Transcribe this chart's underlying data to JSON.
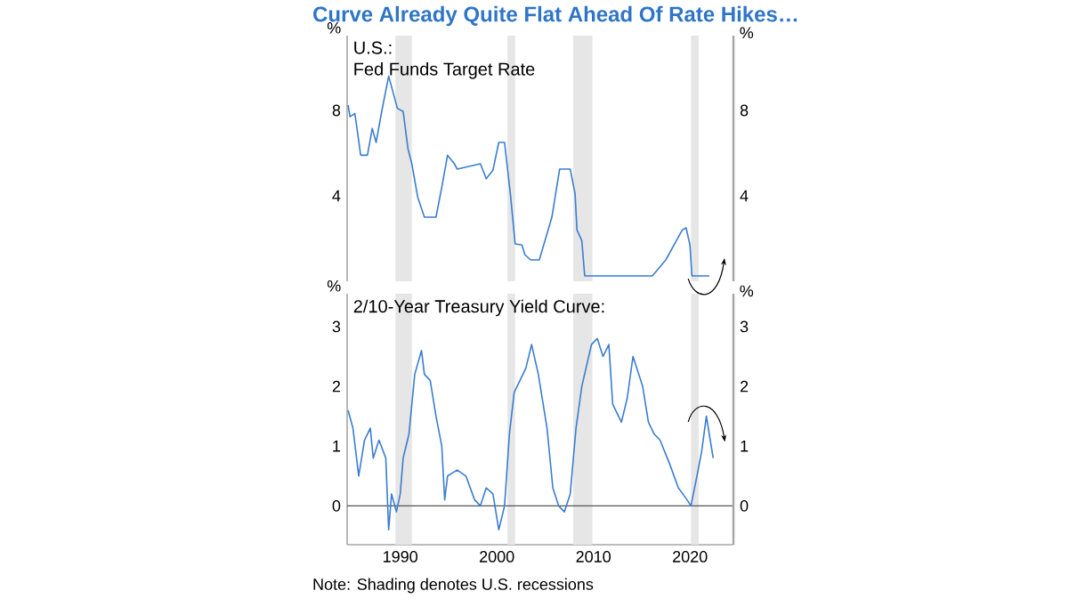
{
  "chart_data": [
    {
      "type": "line",
      "title": "Curve Already Quite Flat Ahead Of Rate Hikes…",
      "subtitle": "Fed Funds Target Rate",
      "annotations": [
        "U.S.:"
      ],
      "ylabel": "%",
      "y2label": "%",
      "tick_labels": "y",
      "color": "#3a7dd0",
      "xlim": [
        1984.5,
        2024.5
      ],
      "xticks": [
        1990,
        2000,
        2010,
        2020
      ],
      "ylim": [
        0,
        11.5
      ],
      "yticks": [
        4,
        8
      ],
      "y2lim": [
        0,
        11.5
      ],
      "y2ticks": [
        4,
        8
      ],
      "bands": [
        {
          "axis": "x",
          "from": 1989.5,
          "to": 1991.2,
          "color": "#e6e6e6"
        },
        {
          "axis": "x",
          "from": 2001.1,
          "to": 2001.9,
          "color": "#e6e6e6"
        },
        {
          "axis": "x",
          "from": 2007.9,
          "to": 2009.9,
          "color": "#e6e6e6"
        },
        {
          "axis": "x",
          "from": 2020.1,
          "to": 2020.9,
          "color": "#e6e6e6"
        }
      ],
      "x": [
        1984.6,
        1984.8,
        1985.3,
        1985.6,
        1985.9,
        1986.6,
        1987.1,
        1987.5,
        1988.1,
        1988.8,
        1989.1,
        1989.7,
        1990.3,
        1990.8,
        1991.2,
        1991.8,
        1992.5,
        1993.7,
        1994.3,
        1994.9,
        1995.6,
        1995.9,
        1998.3,
        1998.9,
        1999.6,
        2000.2,
        2000.8,
        2001.4,
        2001.9,
        2002.6,
        2002.9,
        2003.5,
        2004.4,
        2005.7,
        2006.5,
        2007.6,
        2008.1,
        2008.3,
        2008.8,
        2009.1,
        2016.1,
        2017.5,
        2019.2,
        2019.6,
        2020.0,
        2020.2,
        2022.0
      ],
      "values": [
        8.25,
        7.7,
        7.85,
        6.9,
        5.9,
        5.9,
        7.15,
        6.5,
        8.0,
        9.6,
        9.1,
        8.1,
        7.95,
        6.2,
        5.5,
        3.95,
        3.0,
        3.0,
        4.4,
        5.9,
        5.5,
        5.25,
        5.5,
        4.8,
        5.2,
        6.5,
        6.5,
        4.1,
        1.75,
        1.7,
        1.25,
        1.0,
        1.0,
        3.0,
        5.25,
        5.25,
        4.1,
        2.4,
        1.9,
        0.25,
        0.25,
        1.0,
        2.4,
        2.5,
        1.7,
        0.25,
        0.25
      ]
    },
    {
      "type": "line",
      "title": "2/10-Year Treasury Yield Curve:",
      "annotations": [
        "Note: Shading denotes U.S. recessions"
      ],
      "ylabel": "%",
      "y2label": "%",
      "color": "#3a7dd0",
      "xlim": [
        1984.5,
        2024.5
      ],
      "xticks": [
        1990,
        2000,
        2010,
        2020
      ],
      "ylim": [
        -0.65,
        3.55
      ],
      "yticks": [
        0,
        1,
        2,
        3
      ],
      "y2lim": [
        -0.65,
        3.55
      ],
      "y2ticks": [
        0,
        1,
        2,
        3
      ],
      "ref_lines": [
        {
          "axis": "y",
          "value": 0,
          "color": "#555555"
        }
      ],
      "bands": [
        {
          "axis": "x",
          "from": 1989.5,
          "to": 1991.2,
          "color": "#e6e6e6"
        },
        {
          "axis": "x",
          "from": 2001.1,
          "to": 2001.9,
          "color": "#e6e6e6"
        },
        {
          "axis": "x",
          "from": 2007.9,
          "to": 2009.9,
          "color": "#e6e6e6"
        },
        {
          "axis": "x",
          "from": 2020.1,
          "to": 2020.9,
          "color": "#e6e6e6"
        }
      ],
      "x": [
        1984.6,
        1985.1,
        1985.7,
        1986.3,
        1986.9,
        1987.2,
        1987.8,
        1988.5,
        1988.8,
        1989.1,
        1989.6,
        1990.0,
        1990.3,
        1990.9,
        1991.5,
        1992.2,
        1992.5,
        1993.1,
        1993.7,
        1994.3,
        1994.6,
        1994.9,
        1995.9,
        1996.8,
        1997.7,
        1998.3,
        1998.9,
        1999.6,
        2000.2,
        2000.8,
        2001.3,
        2001.8,
        2002.4,
        2003.0,
        2003.6,
        2004.3,
        2005.2,
        2005.8,
        2006.4,
        2007.0,
        2007.6,
        2008.2,
        2008.8,
        2009.8,
        2010.4,
        2011.0,
        2011.6,
        2012.0,
        2012.9,
        2013.5,
        2014.1,
        2015.1,
        2015.7,
        2016.3,
        2016.9,
        2017.9,
        2018.8,
        2019.7,
        2020.1,
        2020.6,
        2021.2,
        2021.7,
        2022.1,
        2022.4
      ],
      "values": [
        1.6,
        1.3,
        0.5,
        1.1,
        1.3,
        0.8,
        1.1,
        0.8,
        -0.4,
        0.2,
        -0.1,
        0.2,
        0.8,
        1.2,
        2.2,
        2.6,
        2.2,
        2.1,
        1.5,
        1.0,
        0.1,
        0.5,
        0.6,
        0.5,
        0.1,
        0.0,
        0.3,
        0.2,
        -0.4,
        0.0,
        1.2,
        1.9,
        2.1,
        2.3,
        2.7,
        2.2,
        1.3,
        0.3,
        0.0,
        -0.1,
        0.2,
        1.3,
        2.0,
        2.7,
        2.8,
        2.5,
        2.7,
        1.7,
        1.4,
        1.8,
        2.5,
        2.0,
        1.4,
        1.2,
        1.1,
        0.7,
        0.3,
        0.1,
        0.0,
        0.4,
        0.9,
        1.5,
        1.1,
        0.8
      ]
    }
  ]
}
